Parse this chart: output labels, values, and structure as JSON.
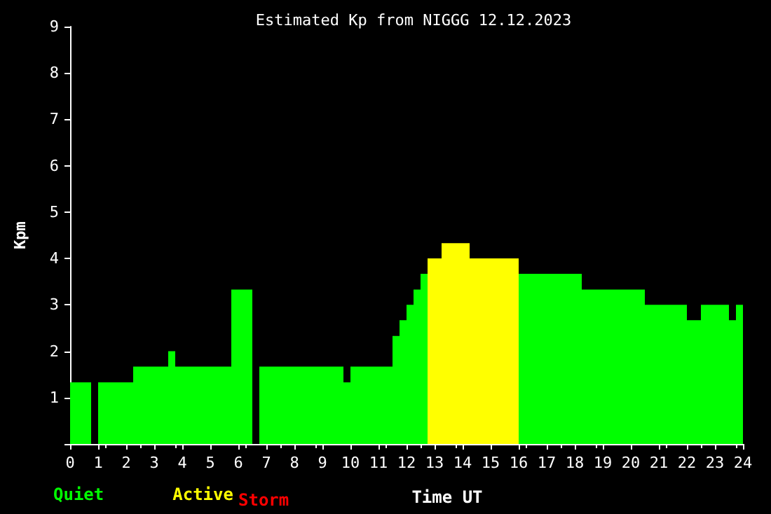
{
  "chart_data": {
    "type": "histogram",
    "title": "Estimated Kp from NIGGG 12.12.2023",
    "xlabel": "Time UT",
    "ylabel": "Kpm",
    "bins": [
      0,
      0.75,
      1,
      2.25,
      3.5,
      3.75,
      5.75,
      6.5,
      6.75,
      9.75,
      10,
      11.5,
      11.75,
      12,
      12.25,
      12.5,
      12.75,
      13.25,
      14.25,
      16,
      18.25,
      20.5,
      22,
      22.5,
      23.5,
      23.75,
      24
    ],
    "series": [
      {
        "name": "Quiet",
        "color": "#00ff00",
        "values": [
          1.33,
          null,
          1.33,
          1.67,
          2,
          1.67,
          3.33,
          null,
          1.67,
          1.33,
          1.67,
          2.33,
          2.67,
          3,
          3.33,
          3.67,
          null,
          null,
          null,
          3.67,
          3.33,
          3,
          2.67,
          3,
          2.67,
          3
        ]
      },
      {
        "name": "Active",
        "color": "#ffff00",
        "values": [
          null,
          null,
          null,
          null,
          null,
          null,
          null,
          null,
          null,
          null,
          null,
          null,
          null,
          null,
          null,
          null,
          4,
          4.33,
          4,
          null,
          null,
          null,
          null,
          null,
          null,
          null
        ]
      }
    ],
    "annotations": [
      "Storm"
    ],
    "xlim": [
      0,
      24
    ],
    "xticks": [
      0,
      1,
      2,
      3,
      4,
      5,
      6,
      7,
      8,
      9,
      10,
      11,
      12,
      13,
      14,
      15,
      16,
      17,
      18,
      19,
      20,
      21,
      22,
      23,
      24
    ],
    "ylim": [
      0,
      9
    ],
    "yticks": [
      {
        "value": 0,
        "label": null
      },
      1,
      2,
      3,
      4,
      5,
      6,
      7,
      8,
      9
    ],
    "grid": false,
    "legend": "bottom left"
  }
}
